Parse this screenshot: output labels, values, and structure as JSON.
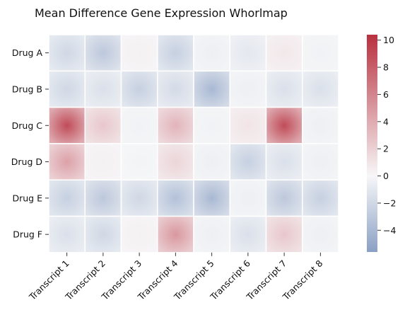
{
  "chart_data": {
    "type": "heatmap",
    "title": "Mean Difference Gene Expression Whorlmap",
    "xlabel": "",
    "ylabel": "",
    "rows": [
      "Drug A",
      "Drug B",
      "Drug C",
      "Drug D",
      "Drug E",
      "Drug F"
    ],
    "columns": [
      "Transcript 1",
      "Transcript 2",
      "Transcript 3",
      "Transcript 4",
      "Transcript 5",
      "Transcript 6",
      "Transcript 7",
      "Transcript 8"
    ],
    "values": [
      [
        -2.0,
        -3.0,
        0.3,
        -2.5,
        -0.5,
        -1.0,
        0.8,
        -0.3
      ],
      [
        -2.0,
        -1.5,
        -2.5,
        -1.8,
        -4.0,
        -0.5,
        -1.5,
        -1.5
      ],
      [
        9.0,
        2.5,
        -0.3,
        3.5,
        -0.3,
        1.0,
        9.0,
        -0.5
      ],
      [
        4.5,
        0.3,
        -0.2,
        1.8,
        -0.5,
        -2.5,
        -1.5,
        -0.5
      ],
      [
        -2.5,
        -3.0,
        -2.0,
        -3.5,
        -4.0,
        -0.5,
        -3.0,
        -2.5
      ],
      [
        -1.5,
        -2.0,
        0.3,
        5.0,
        -0.5,
        -1.5,
        2.5,
        -0.5
      ]
    ],
    "colorbar": {
      "min": -5.6,
      "max": 10.4,
      "ticks": [
        -4,
        -2,
        0,
        2,
        4,
        6,
        8,
        10
      ],
      "colormap": "vlag",
      "low_color": "#8aa0c4",
      "mid_color": "#f7f7f8",
      "high_color": "#b8313f"
    },
    "legend": "colorbar right",
    "grid": false
  }
}
